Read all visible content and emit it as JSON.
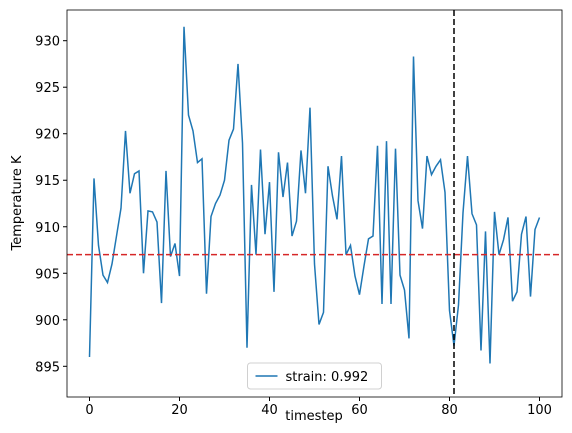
{
  "chart_data": {
    "type": "line",
    "x_label": "timestep",
    "y_label": "Temperature K",
    "x": [
      0,
      1,
      2,
      3,
      4,
      5,
      6,
      7,
      8,
      9,
      10,
      11,
      12,
      13,
      14,
      15,
      16,
      17,
      18,
      19,
      20,
      21,
      22,
      23,
      24,
      25,
      26,
      27,
      28,
      29,
      30,
      31,
      32,
      33,
      34,
      35,
      36,
      37,
      38,
      39,
      40,
      41,
      42,
      43,
      44,
      45,
      46,
      47,
      48,
      49,
      50,
      51,
      52,
      53,
      54,
      55,
      56,
      57,
      58,
      59,
      60,
      61,
      62,
      63,
      64,
      65,
      66,
      67,
      68,
      69,
      70,
      71,
      72,
      73,
      74,
      75,
      76,
      77,
      78,
      79,
      80,
      81,
      82,
      83,
      84,
      85,
      86,
      87,
      88,
      89,
      90,
      91,
      92,
      93,
      94,
      95,
      96,
      97,
      98,
      99,
      100
    ],
    "series": [
      {
        "name": "strain: 0.992",
        "color": "#1f77b4",
        "values": [
          896,
          915.2,
          908,
          904.8,
          904,
          906,
          909,
          912,
          920.3,
          913.6,
          915.7,
          916,
          905,
          911.7,
          911.6,
          910.5,
          901.8,
          916,
          906.8,
          908.2,
          904.7,
          931.5,
          922,
          920.3,
          916.9,
          917.3,
          902.8,
          911.1,
          912.5,
          913.4,
          915,
          919.3,
          920.5,
          927.5,
          919,
          897,
          914.5,
          907,
          918.3,
          909.2,
          914.8,
          903,
          918,
          913.2,
          916.9,
          909,
          910.6,
          918.2,
          913.6,
          922.8,
          906,
          899.5,
          900.8,
          916.5,
          913.3,
          910.8,
          917.6,
          907,
          908,
          904.7,
          902.7,
          905.8,
          908.7,
          909,
          918.7,
          901.7,
          919.2,
          901.7,
          918.4,
          904.8,
          903.2,
          898,
          928.3,
          912.8,
          909.8,
          917.6,
          915.6,
          916.5,
          917.2,
          913.7,
          901,
          897.2,
          901.6,
          911.5,
          917.6,
          911.4,
          910.2,
          896.7,
          909.5,
          895.3,
          911.6,
          907,
          908.6,
          911,
          902,
          903,
          909.2,
          911.1,
          902.5,
          909.7,
          911
        ]
      }
    ],
    "hline": {
      "value": 907,
      "color": "#d62728"
    },
    "vline": {
      "value": 81,
      "color": "#000000"
    },
    "xlim": [
      -5,
      105
    ],
    "ylim": [
      891.7,
      933.3
    ],
    "xticks": [
      0,
      20,
      40,
      60,
      80,
      100
    ],
    "yticks": [
      895,
      900,
      905,
      910,
      915,
      920,
      925,
      930
    ],
    "legend": "lower center"
  }
}
